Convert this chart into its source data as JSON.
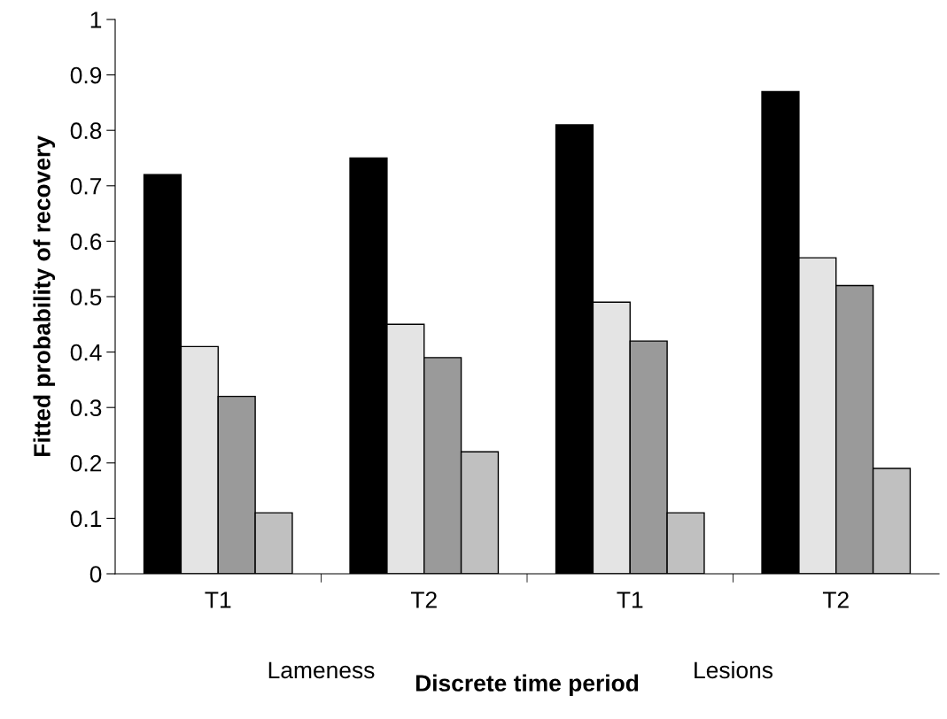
{
  "chart_data": {
    "type": "bar",
    "xlabel": "Discrete time period",
    "ylabel": "Fitted probability of recovery",
    "categories": [
      "T1",
      "T2",
      "T1",
      "T2"
    ],
    "series": [
      {
        "color": "#000000",
        "values": [
          0.72,
          0.75,
          0.81,
          0.87
        ]
      },
      {
        "color": "#e4e4e4",
        "values": [
          0.41,
          0.45,
          0.49,
          0.57
        ]
      },
      {
        "color": "#9a9a9a",
        "values": [
          0.32,
          0.39,
          0.42,
          0.52
        ]
      },
      {
        "color": "#c0c0c0",
        "values": [
          0.11,
          0.22,
          0.11,
          0.19
        ]
      }
    ],
    "ylim": [
      0,
      1
    ],
    "yticks": [
      0,
      0.1,
      0.2,
      0.3,
      0.4,
      0.5,
      0.6,
      0.7,
      0.8,
      0.9,
      1
    ],
    "annotations": [
      "Lameness",
      "Lesions"
    ],
    "grid": false,
    "legend": false
  }
}
